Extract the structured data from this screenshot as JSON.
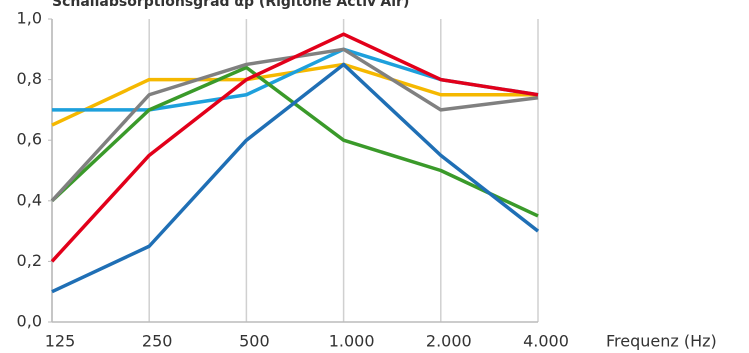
{
  "chart_data": {
    "type": "line",
    "title": "Schallabsorptionsgrad αp (Rigitone Activ'Air)",
    "x_label": "Frequenz (Hz)",
    "categories": [
      "125",
      "250",
      "500",
      "1.000",
      "2.000",
      "4.000"
    ],
    "series": [
      {
        "color": "#f5b800",
        "values": [
          0.65,
          0.8,
          0.8,
          0.85,
          0.75,
          0.75
        ]
      },
      {
        "color": "#1ea0dc",
        "values": [
          0.7,
          0.7,
          0.75,
          0.9,
          0.8,
          0.75
        ]
      },
      {
        "color": "#3a9a2a",
        "values": [
          0.4,
          0.7,
          0.84,
          0.6,
          0.5,
          0.35
        ]
      },
      {
        "color": "#808080",
        "values": [
          0.4,
          0.75,
          0.85,
          0.9,
          0.7,
          0.74
        ]
      },
      {
        "color": "#e2001a",
        "values": [
          0.2,
          0.55,
          0.8,
          0.95,
          0.8,
          0.75
        ]
      },
      {
        "color": "#1f6fb5",
        "values": [
          0.1,
          0.25,
          0.6,
          0.85,
          0.55,
          0.3
        ]
      }
    ],
    "ylim": [
      0,
      1
    ],
    "yticks": [
      {
        "value": 0,
        "label": "0,0"
      },
      {
        "value": 0.2,
        "label": "0,2"
      },
      {
        "value": 0.4,
        "label": "0,4"
      },
      {
        "value": 0.6,
        "label": "0,6"
      },
      {
        "value": 0.8,
        "label": "0,8"
      },
      {
        "value": 1,
        "label": "1,0"
      }
    ],
    "grid": true
  }
}
